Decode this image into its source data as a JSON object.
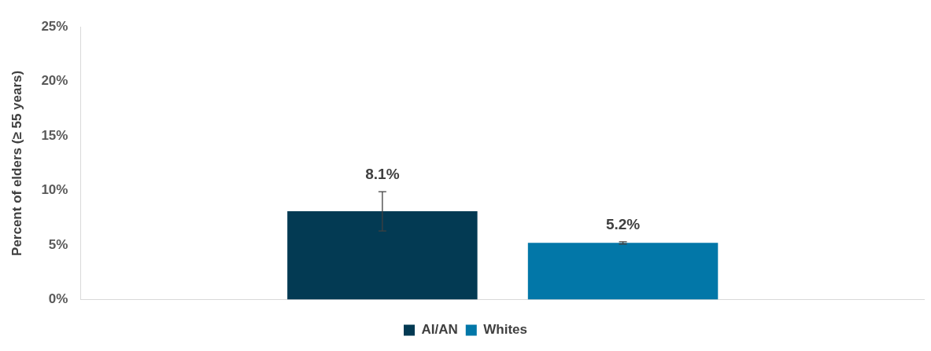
{
  "chart_data": {
    "type": "bar",
    "ylabel": "Percent of elders (≥ 55 years)",
    "categories": [
      null
    ],
    "series": [
      {
        "name": "AI/AN",
        "color": "#033a53",
        "values": [
          8.1
        ],
        "errors": [
          [
            6.3,
            9.9
          ]
        ],
        "value_labels": [
          "8.1%"
        ]
      },
      {
        "name": "Whites",
        "color": "#0277a8",
        "values": [
          5.2
        ],
        "errors": [
          [
            5.1,
            5.3
          ]
        ],
        "value_labels": [
          "5.2%"
        ]
      }
    ],
    "ylim": [
      0,
      25
    ],
    "yticks": [
      {
        "value": 0,
        "label": "0%"
      },
      {
        "value": 5,
        "label": "5%"
      },
      {
        "value": 10,
        "label": "10%"
      },
      {
        "value": 15,
        "label": "15%"
      },
      {
        "value": 20,
        "label": "20%"
      },
      {
        "value": 25,
        "label": "25%"
      }
    ],
    "grid": false,
    "legend": "bottom"
  }
}
